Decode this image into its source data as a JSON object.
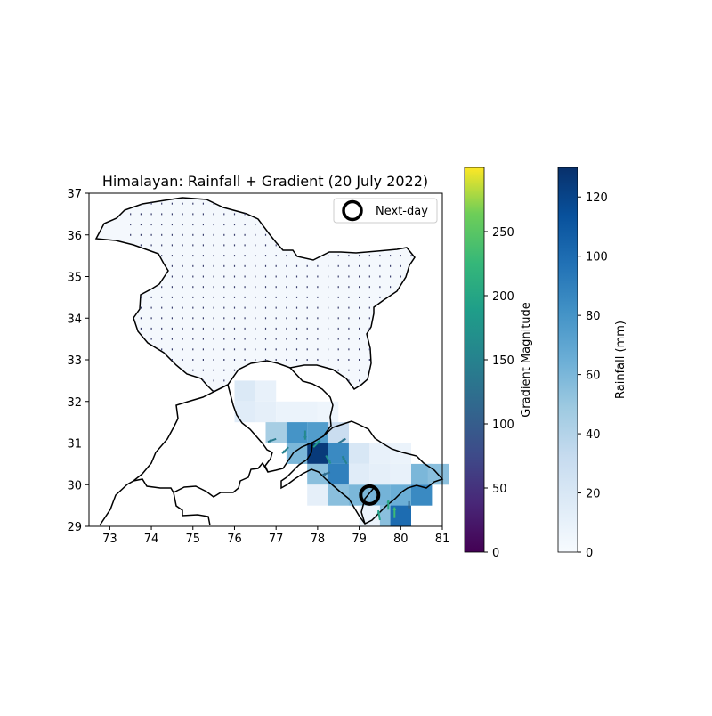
{
  "chart_data": {
    "type": "heatmap",
    "title": "Himalayan: Rainfall + Gradient (20 July 2022)",
    "xlim": [
      72.5,
      81
    ],
    "ylim": [
      29,
      37
    ],
    "x_ticks": [
      "73",
      "74",
      "75",
      "76",
      "77",
      "78",
      "79",
      "80",
      "81"
    ],
    "y_ticks": [
      "29",
      "30",
      "31",
      "32",
      "33",
      "34",
      "35",
      "36",
      "37"
    ],
    "legend": {
      "label": "Next-day",
      "placement": "top-right",
      "marker": "circle"
    },
    "next_day_marker": {
      "lon": 79.25,
      "lat": 29.75
    },
    "colorbar_gradient": {
      "label": "Gradient Magnitude",
      "colormap": "viridis",
      "range": [
        0,
        300
      ],
      "ticks": [
        "0",
        "50",
        "100",
        "150",
        "200",
        "250"
      ]
    },
    "colorbar_rainfall": {
      "label": "Rainfall (mm)",
      "colormap": "Blues",
      "range": [
        0,
        130
      ],
      "ticks": [
        "0",
        "20",
        "40",
        "60",
        "80",
        "100",
        "120"
      ]
    },
    "rainfall_cells": [
      {
        "lon": 76.25,
        "lat": 32.25,
        "value": 18
      },
      {
        "lon": 76.75,
        "lat": 32.25,
        "value": 10
      },
      {
        "lon": 76.25,
        "lat": 31.75,
        "value": 15
      },
      {
        "lon": 76.75,
        "lat": 31.75,
        "value": 12
      },
      {
        "lon": 77.25,
        "lat": 31.75,
        "value": 8
      },
      {
        "lon": 77.75,
        "lat": 31.75,
        "value": 8
      },
      {
        "lon": 78.25,
        "lat": 31.75,
        "value": 6
      },
      {
        "lon": 77.0,
        "lat": 31.25,
        "value": 45
      },
      {
        "lon": 77.5,
        "lat": 31.25,
        "value": 80
      },
      {
        "lon": 78.0,
        "lat": 31.25,
        "value": 75
      },
      {
        "lon": 78.5,
        "lat": 31.25,
        "value": 30
      },
      {
        "lon": 77.5,
        "lat": 30.75,
        "value": 60
      },
      {
        "lon": 78.0,
        "lat": 30.75,
        "value": 125
      },
      {
        "lon": 78.5,
        "lat": 30.75,
        "value": 85
      },
      {
        "lon": 79.0,
        "lat": 30.75,
        "value": 20
      },
      {
        "lon": 79.5,
        "lat": 30.75,
        "value": 10
      },
      {
        "lon": 80.0,
        "lat": 30.75,
        "value": 8
      },
      {
        "lon": 78.0,
        "lat": 30.25,
        "value": 55
      },
      {
        "lon": 78.5,
        "lat": 30.25,
        "value": 90
      },
      {
        "lon": 79.0,
        "lat": 30.25,
        "value": 15
      },
      {
        "lon": 79.5,
        "lat": 30.25,
        "value": 12
      },
      {
        "lon": 80.0,
        "lat": 30.25,
        "value": 10
      },
      {
        "lon": 80.5,
        "lat": 30.25,
        "value": 60
      },
      {
        "lon": 80.9,
        "lat": 30.25,
        "value": 55
      },
      {
        "lon": 78.0,
        "lat": 29.75,
        "value": 12
      },
      {
        "lon": 78.5,
        "lat": 29.75,
        "value": 55
      },
      {
        "lon": 79.0,
        "lat": 29.75,
        "value": 60
      },
      {
        "lon": 79.5,
        "lat": 29.75,
        "value": 62
      },
      {
        "lon": 80.0,
        "lat": 29.75,
        "value": 65
      },
      {
        "lon": 80.5,
        "lat": 29.75,
        "value": 85
      },
      {
        "lon": 79.25,
        "lat": 29.25,
        "value": 8
      },
      {
        "lon": 79.75,
        "lat": 29.25,
        "value": 55
      },
      {
        "lon": 80.0,
        "lat": 29.25,
        "value": 100
      }
    ],
    "gradient_arrows": [
      {
        "lon": 77.0,
        "lat": 31.1,
        "dir_deg": 200,
        "magnitude": 140
      },
      {
        "lon": 77.3,
        "lat": 30.9,
        "dir_deg": 225,
        "magnitude": 150
      },
      {
        "lon": 77.7,
        "lat": 31.3,
        "dir_deg": 270,
        "magnitude": 160
      },
      {
        "lon": 77.9,
        "lat": 30.9,
        "dir_deg": 45,
        "magnitude": 180
      },
      {
        "lon": 78.2,
        "lat": 30.7,
        "dir_deg": 300,
        "magnitude": 170
      },
      {
        "lon": 78.5,
        "lat": 31.0,
        "dir_deg": 30,
        "magnitude": 130
      },
      {
        "lon": 78.7,
        "lat": 30.5,
        "dir_deg": 120,
        "magnitude": 150
      },
      {
        "lon": 78.3,
        "lat": 30.3,
        "dir_deg": 200,
        "magnitude": 120
      },
      {
        "lon": 79.7,
        "lat": 29.4,
        "dir_deg": 90,
        "magnitude": 200
      },
      {
        "lon": 79.85,
        "lat": 29.2,
        "dir_deg": 90,
        "magnitude": 230
      },
      {
        "lon": 79.5,
        "lat": 29.15,
        "dir_deg": 100,
        "magnitude": 190
      },
      {
        "lon": 80.2,
        "lat": 29.6,
        "dir_deg": 270,
        "magnitude": 110
      }
    ]
  }
}
